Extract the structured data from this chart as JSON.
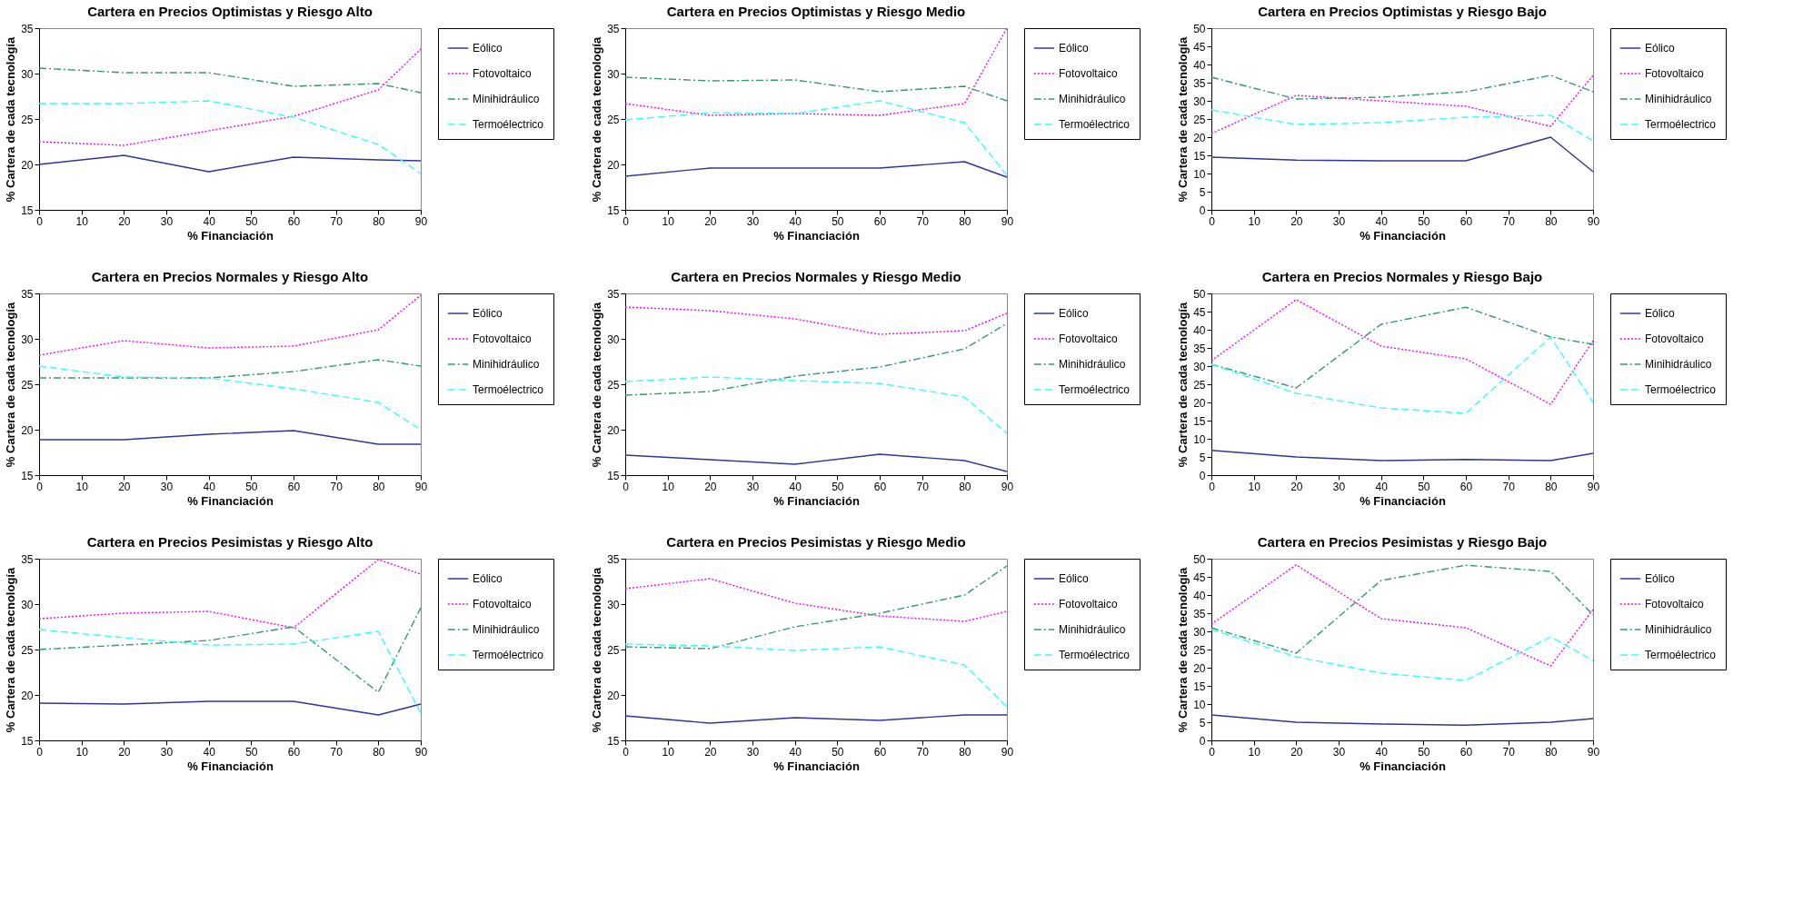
{
  "chart_data": [
    {
      "type": "line",
      "title": "Cartera en Precios Optimistas y Riesgo Alto",
      "xlabel": "% Financiación",
      "ylabel": "% Cartera de cada tecnología",
      "x": [
        0,
        20,
        40,
        60,
        80,
        90
      ],
      "xlim": [
        0,
        90
      ],
      "xticks": [
        0,
        10,
        20,
        30,
        40,
        50,
        60,
        70,
        80,
        90
      ],
      "ylim": [
        15,
        35
      ],
      "yticks": [
        15,
        20,
        25,
        30,
        35
      ],
      "legend": "right",
      "series": [
        {
          "name": "Eólico",
          "color": "#333399",
          "line_style": "solid",
          "values": [
            20,
            21,
            19.2,
            20.8,
            20.5,
            20.4
          ]
        },
        {
          "name": "Fotovoltaico",
          "color": "#ff00ff",
          "line_style": "dotted",
          "values": [
            22.5,
            22.1,
            23.7,
            25.3,
            28.2,
            32.7
          ]
        },
        {
          "name": "Minihidráulico",
          "color": "#339966",
          "line_style": "dashdot",
          "values": [
            30.6,
            30.1,
            30.1,
            28.6,
            28.9,
            27.9
          ]
        },
        {
          "name": "Termoélectrico",
          "color": "#33ffff",
          "line_style": "dashed",
          "values": [
            26.7,
            26.7,
            27,
            25.2,
            22.2,
            19
          ]
        }
      ]
    },
    {
      "type": "line",
      "title": "Cartera en Precios Optimistas y Riesgo Medio",
      "xlabel": "% Financiación",
      "ylabel": "% Cartera de cada tecnología",
      "x": [
        0,
        20,
        40,
        60,
        80,
        90
      ],
      "xlim": [
        0,
        90
      ],
      "xticks": [
        0,
        10,
        20,
        30,
        40,
        50,
        60,
        70,
        80,
        90
      ],
      "ylim": [
        15,
        35
      ],
      "yticks": [
        15,
        20,
        25,
        30,
        35
      ],
      "legend": "right",
      "series": [
        {
          "name": "Eólico",
          "color": "#333399",
          "line_style": "solid",
          "values": [
            18.7,
            19.6,
            19.6,
            19.6,
            20.3,
            18.6
          ]
        },
        {
          "name": "Fotovoltaico",
          "color": "#ff00ff",
          "line_style": "dotted",
          "values": [
            26.7,
            25.4,
            25.6,
            25.4,
            26.7,
            35
          ]
        },
        {
          "name": "Minihidráulico",
          "color": "#339966",
          "line_style": "dashdot",
          "values": [
            29.6,
            29.2,
            29.3,
            28,
            28.6,
            27
          ]
        },
        {
          "name": "Termoélectrico",
          "color": "#33ffff",
          "line_style": "dashed",
          "values": [
            24.9,
            25.7,
            25.6,
            27,
            24.6,
            18.8
          ]
        }
      ]
    },
    {
      "type": "line",
      "title": "Cartera en Precios Optimistas y Riesgo Bajo",
      "xlabel": "% Financiación",
      "ylabel": "% Cartera de cada tecnología",
      "x": [
        0,
        20,
        40,
        60,
        80,
        90
      ],
      "xlim": [
        0,
        90
      ],
      "xticks": [
        0,
        10,
        20,
        30,
        40,
        50,
        60,
        70,
        80,
        90
      ],
      "ylim": [
        0,
        50
      ],
      "yticks": [
        0,
        5,
        10,
        15,
        20,
        25,
        30,
        35,
        40,
        45,
        50
      ],
      "legend": "right",
      "series": [
        {
          "name": "Eólico",
          "color": "#333399",
          "line_style": "solid",
          "values": [
            14.5,
            13.7,
            13.5,
            13.5,
            20,
            10.5
          ]
        },
        {
          "name": "Fotovoltaico",
          "color": "#ff00ff",
          "line_style": "dotted",
          "values": [
            21,
            31.5,
            30,
            28.5,
            23,
            37
          ]
        },
        {
          "name": "Minihidráulico",
          "color": "#339966",
          "line_style": "dashdot",
          "values": [
            36.5,
            30.5,
            31,
            32.5,
            37,
            32.5
          ]
        },
        {
          "name": "Termoélectrico",
          "color": "#33ffff",
          "line_style": "dashed",
          "values": [
            27.5,
            23.5,
            24,
            25.5,
            26,
            19
          ]
        }
      ]
    },
    {
      "type": "line",
      "title": "Cartera en Precios Normales y Riesgo Alto",
      "xlabel": "% Financiación",
      "ylabel": "% Cartera de cada tecnología",
      "x": [
        0,
        20,
        40,
        60,
        80,
        90
      ],
      "xlim": [
        0,
        90
      ],
      "xticks": [
        0,
        10,
        20,
        30,
        40,
        50,
        60,
        70,
        80,
        90
      ],
      "ylim": [
        15,
        35
      ],
      "yticks": [
        15,
        20,
        25,
        30,
        35
      ],
      "legend": "right",
      "series": [
        {
          "name": "Eólico",
          "color": "#333399",
          "line_style": "solid",
          "values": [
            18.9,
            18.9,
            19.5,
            19.9,
            18.4,
            18.4
          ]
        },
        {
          "name": "Fotovoltaico",
          "color": "#ff00ff",
          "line_style": "dotted",
          "values": [
            28.2,
            29.8,
            29,
            29.2,
            31,
            34.8
          ]
        },
        {
          "name": "Minihidráulico",
          "color": "#339966",
          "line_style": "dashdot",
          "values": [
            25.7,
            25.7,
            25.7,
            26.4,
            27.7,
            27
          ]
        },
        {
          "name": "Termoélectrico",
          "color": "#33ffff",
          "line_style": "dashed",
          "values": [
            27,
            25.8,
            25.7,
            24.5,
            23,
            20
          ]
        }
      ]
    },
    {
      "type": "line",
      "title": "Cartera en Precios Normales y Riesgo Medio",
      "xlabel": "% Financiación",
      "ylabel": "% Cartera de cada tecnología",
      "x": [
        0,
        20,
        40,
        60,
        80,
        90
      ],
      "xlim": [
        0,
        90
      ],
      "xticks": [
        0,
        10,
        20,
        30,
        40,
        50,
        60,
        70,
        80,
        90
      ],
      "ylim": [
        15,
        35
      ],
      "yticks": [
        15,
        20,
        25,
        30,
        35
      ],
      "legend": "right",
      "series": [
        {
          "name": "Eólico",
          "color": "#333399",
          "line_style": "solid",
          "values": [
            17.2,
            16.7,
            16.2,
            17.3,
            16.6,
            15.4
          ]
        },
        {
          "name": "Fotovoltaico",
          "color": "#ff00ff",
          "line_style": "dotted",
          "values": [
            33.5,
            33.1,
            32.2,
            30.5,
            30.9,
            32.8
          ]
        },
        {
          "name": "Minihidráulico",
          "color": "#339966",
          "line_style": "dashdot",
          "values": [
            23.8,
            24.2,
            25.9,
            26.9,
            28.9,
            31.7
          ]
        },
        {
          "name": "Termoélectrico",
          "color": "#33ffff",
          "line_style": "dashed",
          "values": [
            25.3,
            25.8,
            25.4,
            25.1,
            23.6,
            19.6
          ]
        }
      ]
    },
    {
      "type": "line",
      "title": "Cartera en Precios Normales y Riesgo Bajo",
      "xlabel": "% Financiación",
      "ylabel": "% Cartera de cada tecnología",
      "x": [
        0,
        20,
        40,
        60,
        80,
        90
      ],
      "xlim": [
        0,
        90
      ],
      "xticks": [
        0,
        10,
        20,
        30,
        40,
        50,
        60,
        70,
        80,
        90
      ],
      "ylim": [
        0,
        50
      ],
      "yticks": [
        0,
        5,
        10,
        15,
        20,
        25,
        30,
        35,
        40,
        45,
        50
      ],
      "legend": "right",
      "series": [
        {
          "name": "Eólico",
          "color": "#333399",
          "line_style": "solid",
          "values": [
            6.8,
            5,
            4,
            4.3,
            4,
            6
          ]
        },
        {
          "name": "Fotovoltaico",
          "color": "#ff00ff",
          "line_style": "dotted",
          "values": [
            31.5,
            48.3,
            35.5,
            32,
            19.5,
            37
          ]
        },
        {
          "name": "Minihidráulico",
          "color": "#339966",
          "line_style": "dashdot",
          "values": [
            30.5,
            24,
            41.5,
            46.2,
            38,
            36
          ]
        },
        {
          "name": "Termoélectrico",
          "color": "#33ffff",
          "line_style": "dashed",
          "values": [
            30.5,
            22.5,
            18.5,
            17,
            38,
            20
          ]
        }
      ]
    },
    {
      "type": "line",
      "title": "Cartera en Precios Pesimistas y Riesgo Alto",
      "xlabel": "% Financiación",
      "ylabel": "% Cartera de cada tecnología",
      "x": [
        0,
        20,
        40,
        60,
        80,
        90
      ],
      "xlim": [
        0,
        90
      ],
      "xticks": [
        0,
        10,
        20,
        30,
        40,
        50,
        60,
        70,
        80,
        90
      ],
      "ylim": [
        15,
        35
      ],
      "yticks": [
        15,
        20,
        25,
        30,
        35
      ],
      "legend": "right",
      "series": [
        {
          "name": "Eólico",
          "color": "#333399",
          "line_style": "solid",
          "values": [
            19.1,
            19,
            19.3,
            19.3,
            17.8,
            19
          ]
        },
        {
          "name": "Fotovoltaico",
          "color": "#ff00ff",
          "line_style": "dotted",
          "values": [
            28.4,
            29,
            29.2,
            27.4,
            34.9,
            33.3
          ]
        },
        {
          "name": "Minihidráulico",
          "color": "#339966",
          "line_style": "dashdot",
          "values": [
            25,
            25.5,
            26,
            27.5,
            20.3,
            29.6
          ]
        },
        {
          "name": "Termoélectrico",
          "color": "#33ffff",
          "line_style": "dashed",
          "values": [
            27.2,
            26.3,
            25.5,
            25.6,
            27,
            18
          ]
        }
      ]
    },
    {
      "type": "line",
      "title": "Cartera en Precios Pesimistas y Riesgo Medio",
      "xlabel": "% Financiación",
      "ylabel": "% Cartera de cada tecnología",
      "x": [
        0,
        20,
        40,
        60,
        80,
        90
      ],
      "xlim": [
        0,
        90
      ],
      "xticks": [
        0,
        10,
        20,
        30,
        40,
        50,
        60,
        70,
        80,
        90
      ],
      "ylim": [
        15,
        35
      ],
      "yticks": [
        15,
        20,
        25,
        30,
        35
      ],
      "legend": "right",
      "series": [
        {
          "name": "Eólico",
          "color": "#333399",
          "line_style": "solid",
          "values": [
            17.7,
            16.9,
            17.5,
            17.2,
            17.8,
            17.8
          ]
        },
        {
          "name": "Fotovoltaico",
          "color": "#ff00ff",
          "line_style": "dotted",
          "values": [
            31.7,
            32.8,
            30.1,
            28.7,
            28.1,
            29.2
          ]
        },
        {
          "name": "Minihidráulico",
          "color": "#339966",
          "line_style": "dashdot",
          "values": [
            25.3,
            25.1,
            27.5,
            29,
            31,
            34.2
          ]
        },
        {
          "name": "Termoélectrico",
          "color": "#33ffff",
          "line_style": "dashed",
          "values": [
            25.6,
            25.4,
            24.9,
            25.3,
            23.3,
            18.7
          ]
        }
      ]
    },
    {
      "type": "line",
      "title": "Cartera en Precios Pesimistas y Riesgo Bajo",
      "xlabel": "% Financiación",
      "ylabel": "% Cartera de cada tecnología",
      "x": [
        0,
        20,
        40,
        60,
        80,
        90
      ],
      "xlim": [
        0,
        90
      ],
      "xticks": [
        0,
        10,
        20,
        30,
        40,
        50,
        60,
        70,
        80,
        90
      ],
      "ylim": [
        0,
        50
      ],
      "yticks": [
        0,
        5,
        10,
        15,
        20,
        25,
        30,
        35,
        40,
        45,
        50
      ],
      "legend": "right",
      "series": [
        {
          "name": "Eólico",
          "color": "#333399",
          "line_style": "solid",
          "values": [
            7,
            5,
            4.5,
            4.2,
            5,
            6
          ]
        },
        {
          "name": "Fotovoltaico",
          "color": "#ff00ff",
          "line_style": "dotted",
          "values": [
            32,
            48.3,
            33.5,
            31,
            20.5,
            36
          ]
        },
        {
          "name": "Minihidráulico",
          "color": "#339966",
          "line_style": "dashdot",
          "values": [
            31,
            24,
            44,
            48.2,
            46.5,
            34.5
          ]
        },
        {
          "name": "Termoélectrico",
          "color": "#33ffff",
          "line_style": "dashed",
          "values": [
            30.5,
            23,
            18.5,
            16.5,
            28.5,
            22
          ]
        }
      ]
    }
  ]
}
